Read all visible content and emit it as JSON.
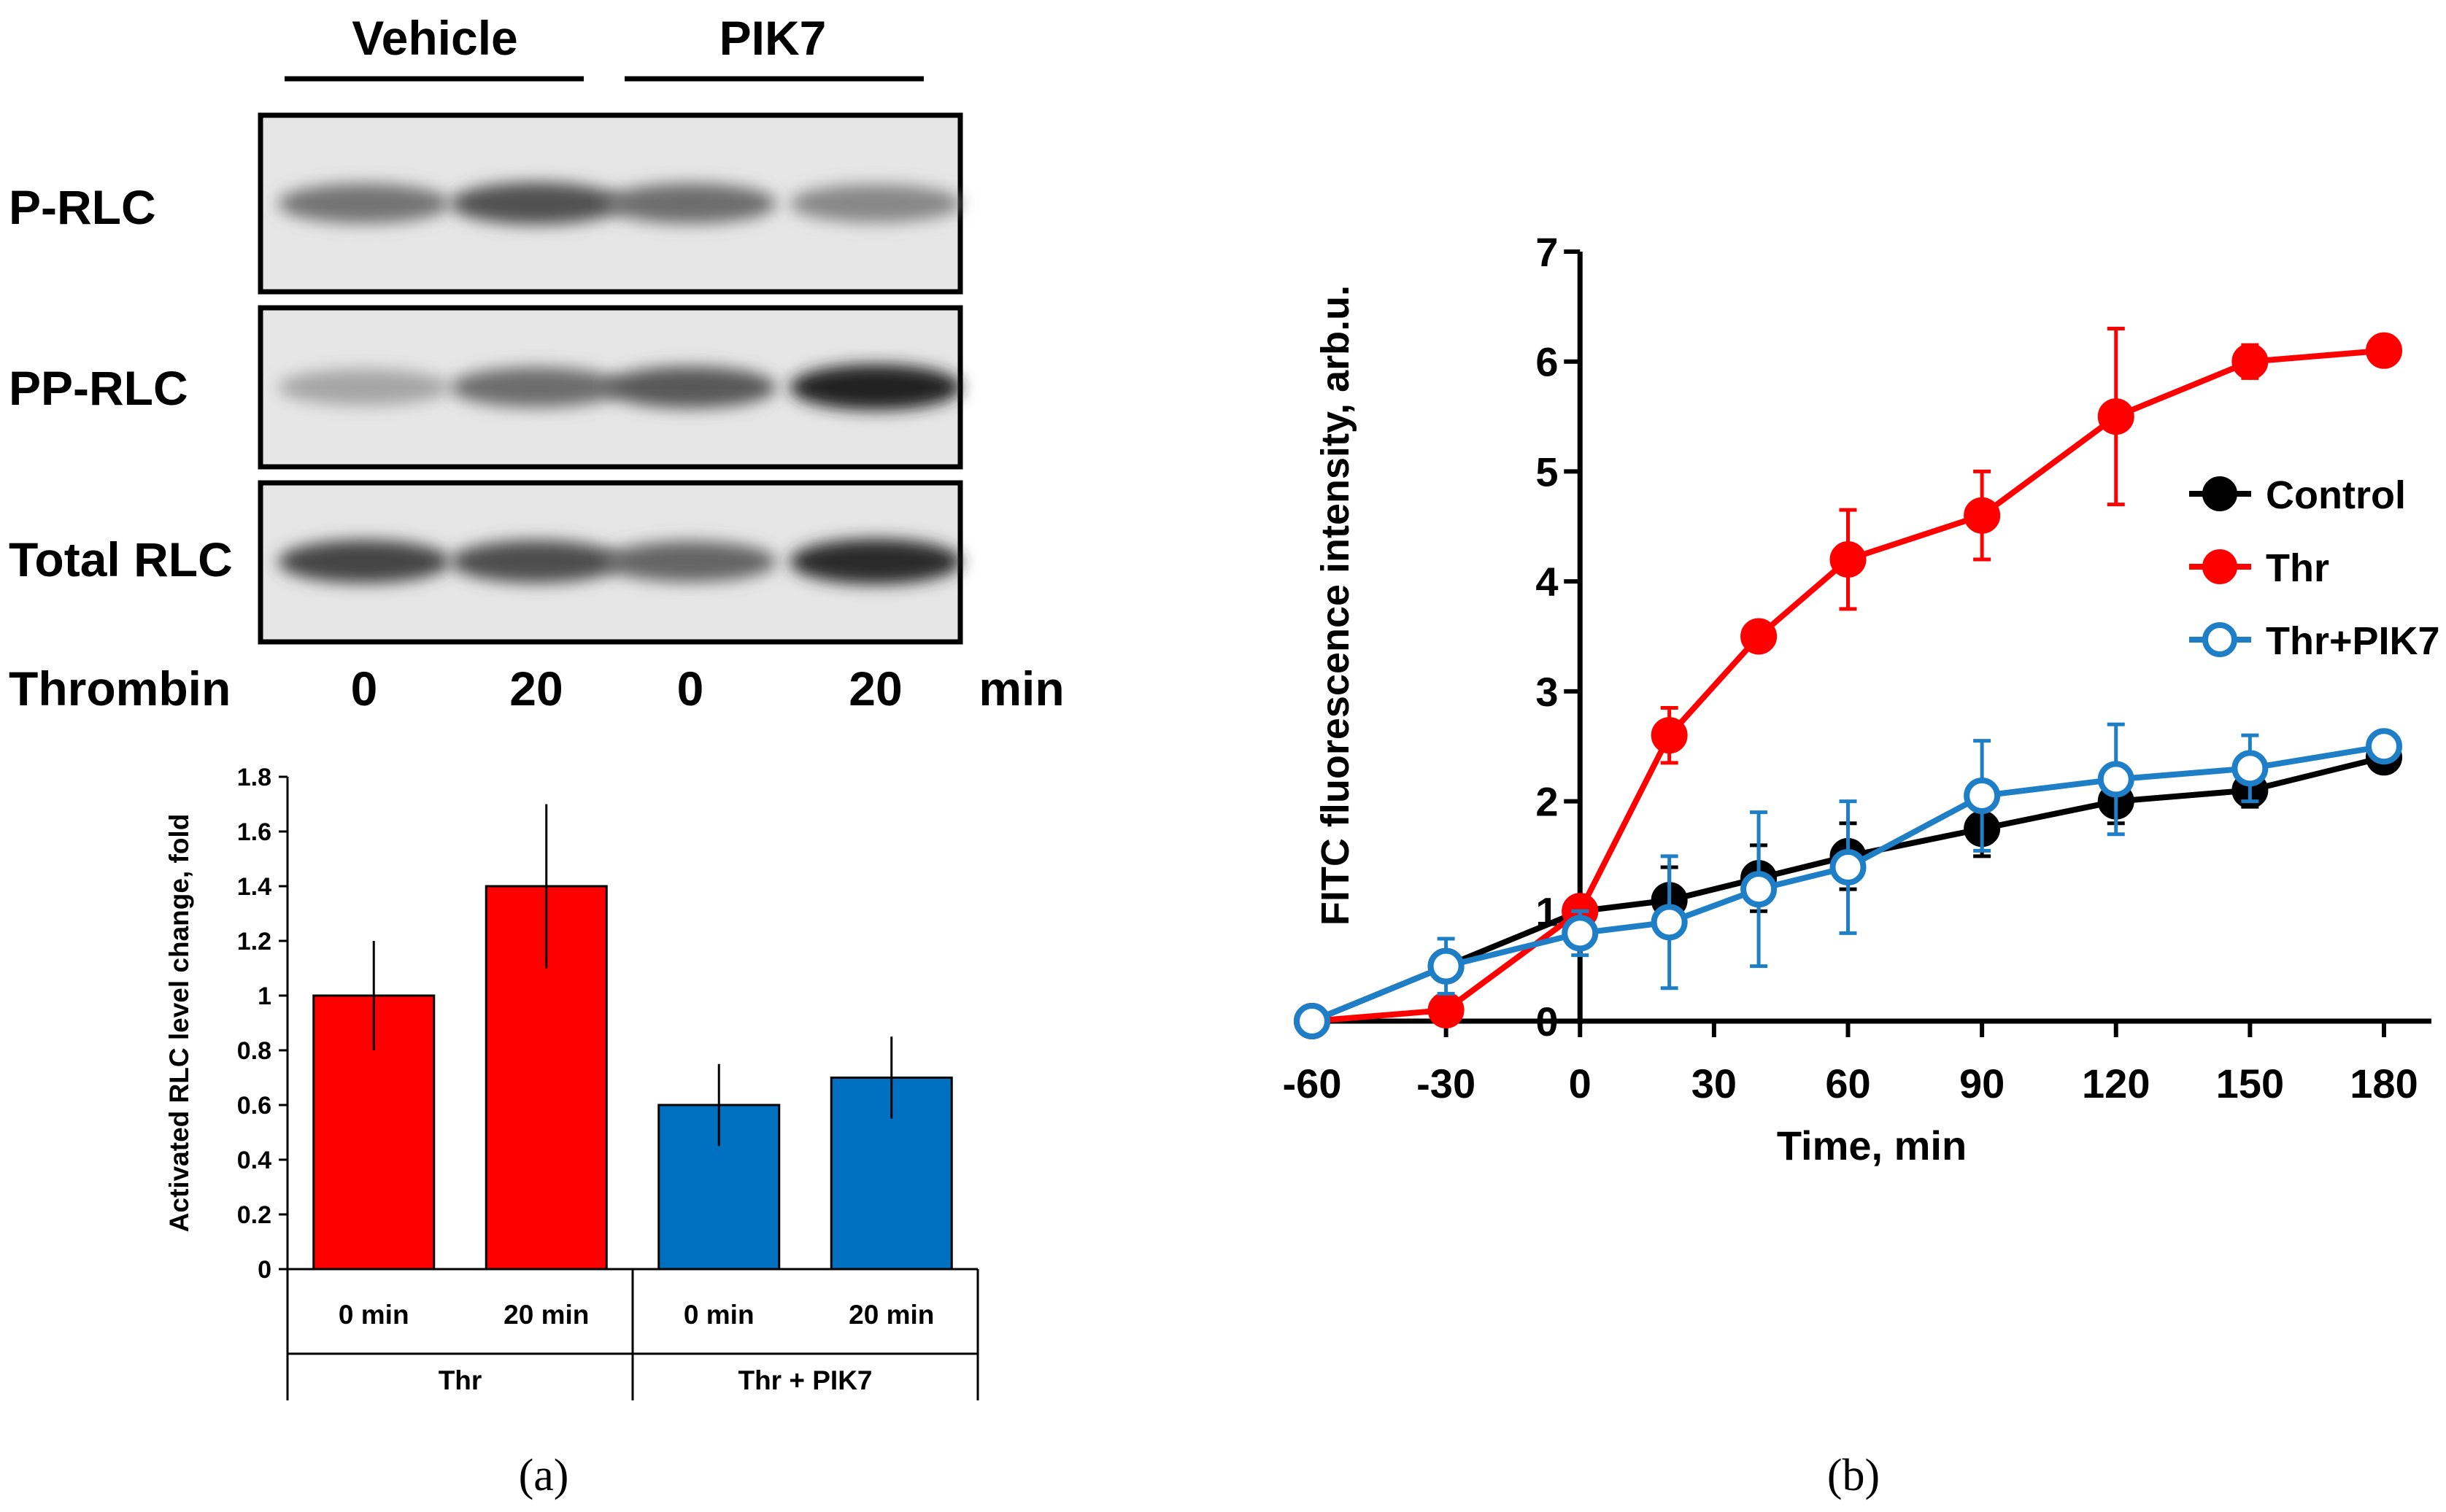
{
  "panel_a": {
    "blot": {
      "group_labels": [
        "Vehicle",
        "PIK7"
      ],
      "row_labels": [
        "P-RLC",
        "PP-RLC",
        "Total RLC"
      ],
      "thrombin_label": "Thrombin",
      "time_values": [
        "0",
        "20",
        "0",
        "20"
      ],
      "time_unit": "min",
      "band_intensity": [
        [
          0.55,
          0.72,
          0.58,
          0.45
        ],
        [
          0.3,
          0.58,
          0.68,
          0.95
        ],
        [
          0.78,
          0.74,
          0.62,
          0.92
        ]
      ]
    },
    "caption": "(a)"
  },
  "panel_b": {
    "caption": "(b)"
  },
  "colors": {
    "red": "#ff0000",
    "blue": "#0070c0",
    "black": "#000000",
    "line_blue": "#1f7fc6"
  },
  "chart_data": [
    {
      "type": "bar",
      "ylabel": "Activated RLC level change, fold",
      "ylim": [
        0,
        1.8
      ],
      "yticks": [
        "0",
        "0.2",
        "0.4",
        "0.6",
        "0.8",
        "1",
        "1.2",
        "1.4",
        "1.6",
        "1.8"
      ],
      "categories": [
        "0 min",
        "20 min",
        "0 min",
        "20 min"
      ],
      "groups": [
        "Thr",
        "Thr + PIK7"
      ],
      "values": [
        1.0,
        1.4,
        0.6,
        0.7
      ],
      "errors": [
        0.2,
        0.3,
        0.15,
        0.15
      ],
      "bar_colors": [
        "#ff0000",
        "#ff0000",
        "#0070c0",
        "#0070c0"
      ]
    },
    {
      "type": "line",
      "xlabel": "Time, min",
      "ylabel": "FITC fluorescence intensity, arb.u.",
      "xlim": [
        -60,
        180
      ],
      "ylim": [
        0,
        7
      ],
      "xticks": [
        "-60",
        "-30",
        "0",
        "30",
        "60",
        "90",
        "120",
        "150",
        "180"
      ],
      "yticks": [
        "0",
        "1",
        "2",
        "3",
        "4",
        "5",
        "6",
        "7"
      ],
      "legend_position": "right",
      "series": [
        {
          "name": "Control",
          "x": [
            -60,
            -30,
            0,
            20,
            40,
            60,
            90,
            120,
            150,
            180
          ],
          "y": [
            0,
            0.5,
            1.0,
            1.1,
            1.3,
            1.5,
            1.75,
            2.0,
            2.1,
            2.4
          ],
          "err": [
            0,
            0,
            0,
            0.3,
            0.3,
            0.3,
            0.25,
            0.2,
            0.15,
            0.1
          ],
          "color": "#000000",
          "marker": "filled"
        },
        {
          "name": "Thr",
          "x": [
            -60,
            -30,
            0,
            20,
            40,
            60,
            90,
            120,
            150,
            180
          ],
          "y": [
            0,
            0.1,
            1.0,
            2.6,
            3.5,
            4.2,
            4.6,
            5.5,
            6.0,
            6.1
          ],
          "err": [
            0,
            0,
            0,
            0.25,
            0.1,
            0.45,
            0.4,
            0.8,
            0.15,
            0.05
          ],
          "color": "#ff0000",
          "marker": "filled"
        },
        {
          "name": "Thr+PIK7",
          "x": [
            -60,
            -30,
            0,
            20,
            40,
            60,
            90,
            120,
            150,
            180
          ],
          "y": [
            0,
            0.5,
            0.8,
            0.9,
            1.2,
            1.4,
            2.05,
            2.2,
            2.3,
            2.5
          ],
          "err": [
            0,
            0.25,
            0.2,
            0.6,
            0.7,
            0.6,
            0.5,
            0.5,
            0.3,
            0.1
          ],
          "color": "#1f7fc6",
          "marker": "open"
        }
      ]
    }
  ]
}
